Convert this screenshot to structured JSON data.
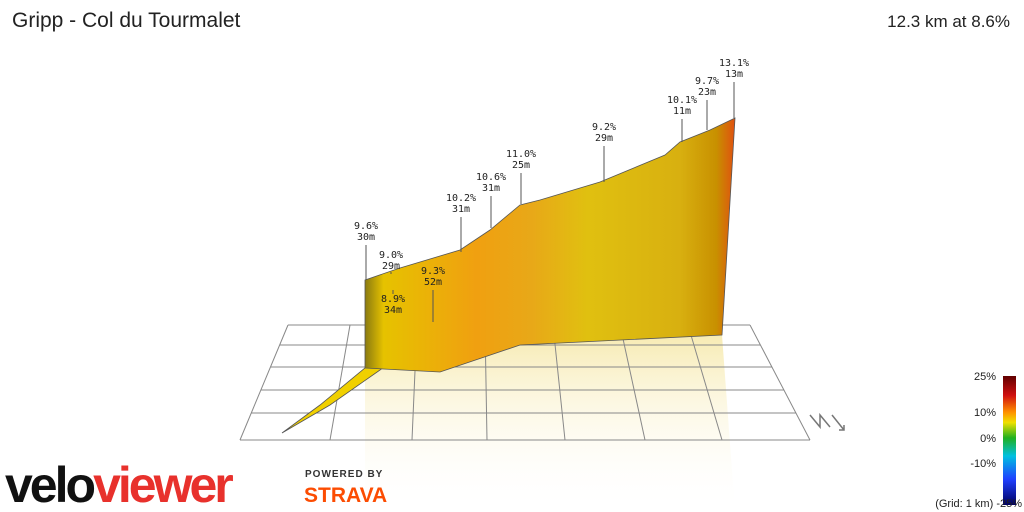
{
  "header": {
    "title": "Gripp - Col du Tourmalet",
    "summary": "12.3 km at 8.6%"
  },
  "annotations": [
    {
      "grade": "9.6%",
      "length": "30m"
    },
    {
      "grade": "9.0%",
      "length": "29m"
    },
    {
      "grade": "8.9%",
      "length": "34m"
    },
    {
      "grade": "9.3%",
      "length": "52m"
    },
    {
      "grade": "10.2%",
      "length": "31m"
    },
    {
      "grade": "10.6%",
      "length": "31m"
    },
    {
      "grade": "11.0%",
      "length": "25m"
    },
    {
      "grade": "9.2%",
      "length": "29m"
    },
    {
      "grade": "10.1%",
      "length": "11m"
    },
    {
      "grade": "9.7%",
      "length": "23m"
    },
    {
      "grade": "13.1%",
      "length": "13m"
    }
  ],
  "legend": {
    "labels": [
      "25%",
      "10%",
      "0%",
      "-10%"
    ],
    "footer": "(Grid: 1 km) -25%"
  },
  "logos": {
    "velo": "velo",
    "viewer": "viewer",
    "powered": "POWERED BY",
    "strava": "STRAVA"
  }
}
